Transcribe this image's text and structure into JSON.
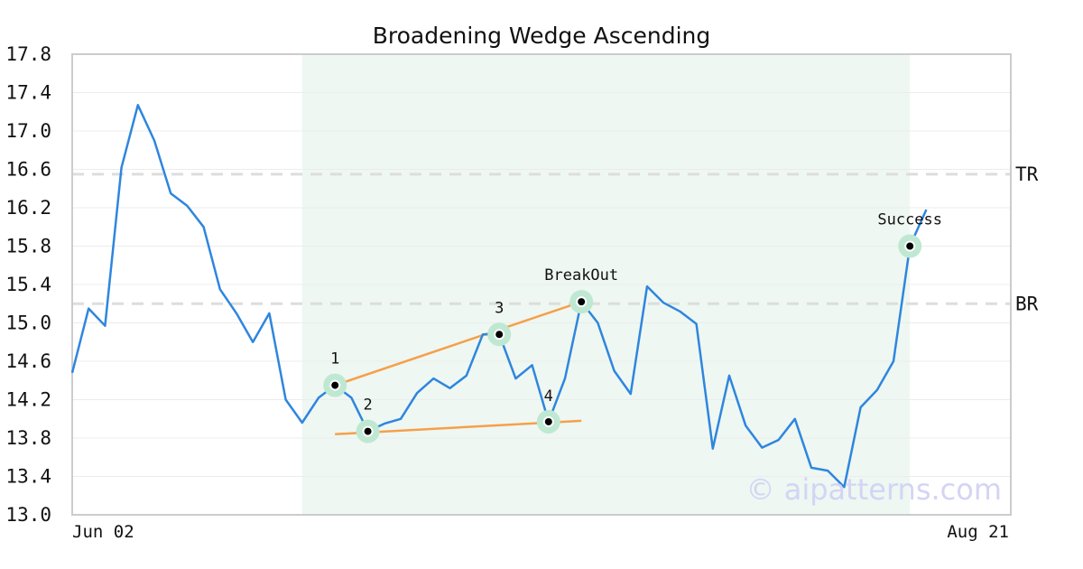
{
  "chart_data": {
    "type": "line",
    "title": "Broadening Wedge Ascending",
    "xlabel": "",
    "ylabel": "",
    "ylim": [
      13.0,
      17.8
    ],
    "yticks": [
      "17.8",
      "17.4",
      "17.0",
      "16.6",
      "16.2",
      "15.8",
      "15.4",
      "15.0",
      "14.6",
      "14.2",
      "13.8",
      "13.4",
      "13.0"
    ],
    "xticks": [
      {
        "label": "Jun 02",
        "index": 0
      },
      {
        "label": "Aug 21",
        "index": 57
      }
    ],
    "grid": true,
    "colors": {
      "series": "#2e86de",
      "trendline": "#f5a04a",
      "highlight_fill": "#eef7f2",
      "marker_halo": "#bfe8d3",
      "reference_line": "#dddddd"
    },
    "series": [
      {
        "values": [
          14.48,
          15.15,
          14.97,
          16.62,
          17.27,
          16.9,
          16.35,
          16.22,
          16.0,
          15.35,
          15.1,
          14.8,
          15.1,
          14.2,
          13.96,
          14.22,
          14.35,
          14.22,
          13.87,
          13.95,
          14.0,
          14.27,
          14.42,
          14.32,
          14.45,
          14.88,
          14.88,
          14.42,
          14.56,
          13.97,
          14.42,
          15.22,
          15.0,
          14.5,
          14.26,
          15.38,
          15.21,
          15.12,
          14.99,
          13.69,
          14.45,
          13.93,
          13.7,
          13.78,
          14.0,
          13.49,
          13.46,
          13.29,
          14.12,
          14.3,
          14.6,
          15.8,
          16.18
        ]
      }
    ],
    "highlight_range": {
      "start_index": 14,
      "end_index": 51
    },
    "reference_lines": [
      {
        "label": "TR",
        "value": 16.55
      },
      {
        "label": "BR",
        "value": 15.2
      }
    ],
    "trendlines": [
      {
        "from": {
          "index": 16,
          "value": 14.35
        },
        "to": {
          "index": 31,
          "value": 15.22
        }
      },
      {
        "from": {
          "index": 16,
          "value": 13.84
        },
        "to": {
          "index": 31,
          "value": 13.98
        }
      }
    ],
    "annotations": [
      {
        "label": "1",
        "index": 16,
        "value": 14.35
      },
      {
        "label": "2",
        "index": 18,
        "value": 13.87
      },
      {
        "label": "3",
        "index": 26,
        "value": 14.88
      },
      {
        "label": "4",
        "index": 29,
        "value": 13.97
      },
      {
        "label": "BreakOut",
        "index": 31,
        "value": 15.22
      },
      {
        "label": "Success",
        "index": 51,
        "value": 15.8
      }
    ],
    "watermark": "© aipatterns.com"
  }
}
